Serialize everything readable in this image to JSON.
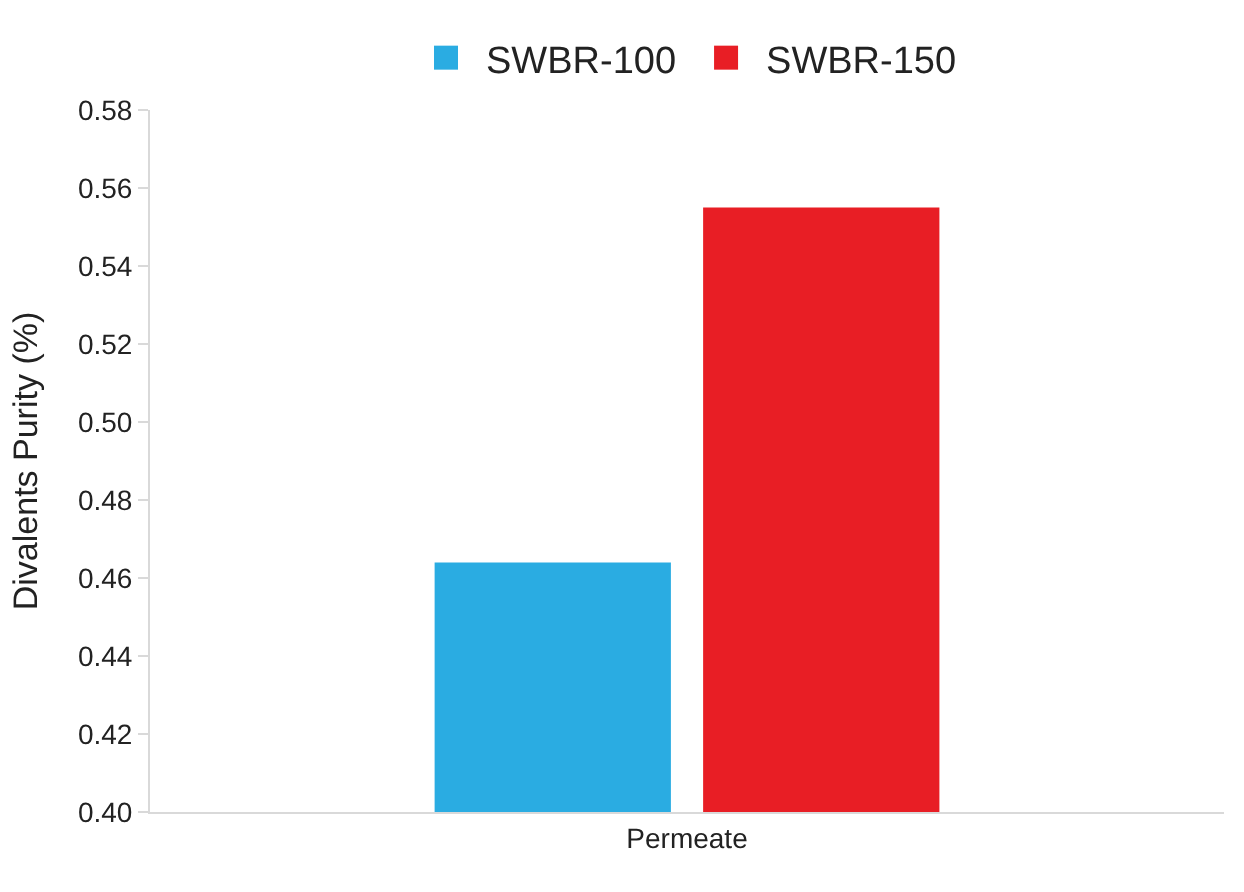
{
  "chart_data": {
    "type": "bar",
    "ylabel": "Divalents Purity (%)",
    "categories": [
      "Permeate"
    ],
    "series": [
      {
        "name": "SWBR-100",
        "color": "#2aace2",
        "values": [
          0.464
        ]
      },
      {
        "name": "SWBR-150",
        "color": "#e81e25",
        "values": [
          0.555
        ]
      }
    ],
    "ylim": [
      0.4,
      0.58
    ],
    "yticks": [
      {
        "value": 0.4,
        "label": "0.40"
      },
      0.42,
      0.44,
      0.46,
      0.48,
      {
        "value": 0.5,
        "label": "0.50"
      },
      0.52,
      0.54,
      0.56,
      0.58
    ],
    "grid": false,
    "legend": "top"
  }
}
